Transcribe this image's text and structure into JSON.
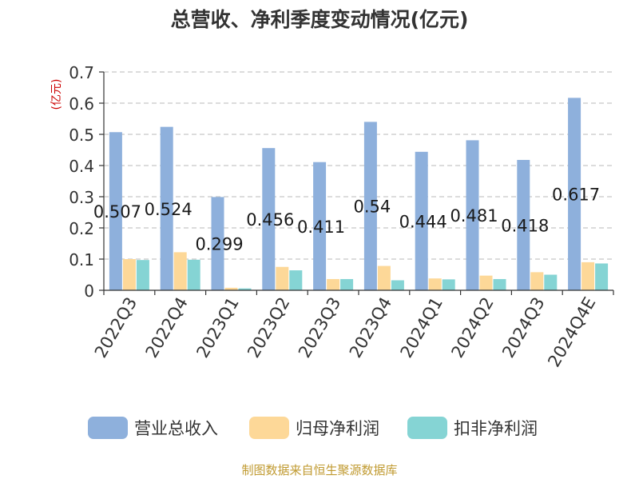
{
  "chart_data": {
    "type": "bar",
    "title": "总营收、净利季度变动情况(亿元)",
    "ylabel": "(亿元)",
    "ylim": [
      0,
      0.7
    ],
    "yticks": [
      0,
      0.1,
      0.2,
      0.3,
      0.4,
      0.5,
      0.6,
      0.7
    ],
    "grid": true,
    "legend_position": "bottom",
    "categories": [
      "2022Q3",
      "2022Q4",
      "2023Q1",
      "2023Q2",
      "2023Q3",
      "2023Q4",
      "2024Q1",
      "2024Q2",
      "2024Q3",
      "2024Q4E"
    ],
    "series": [
      {
        "name": "营业总收入",
        "color": "#8eb0dc",
        "values": [
          0.507,
          0.524,
          0.299,
          0.456,
          0.411,
          0.54,
          0.444,
          0.481,
          0.418,
          0.617
        ],
        "data_labels": [
          "0.507",
          "0.524",
          "0.299",
          "0.456",
          "0.411",
          "0.54",
          "0.444",
          "0.481",
          "0.418",
          "0.617"
        ]
      },
      {
        "name": "归母净利润",
        "color": "#fdd898",
        "values": [
          0.1,
          0.122,
          0.008,
          0.075,
          0.036,
          0.078,
          0.038,
          0.047,
          0.058,
          0.09
        ]
      },
      {
        "name": "扣非净利润",
        "color": "#85d4d4",
        "values": [
          0.097,
          0.098,
          0.006,
          0.064,
          0.036,
          0.032,
          0.035,
          0.036,
          0.05,
          0.086
        ]
      }
    ]
  },
  "footer": {
    "source": "制图数据来自恒生聚源数据库"
  },
  "colors": {
    "title": "#333333",
    "axis_label": "#cc0000",
    "source": "#c09a30",
    "grid": "#c8c8c8"
  }
}
